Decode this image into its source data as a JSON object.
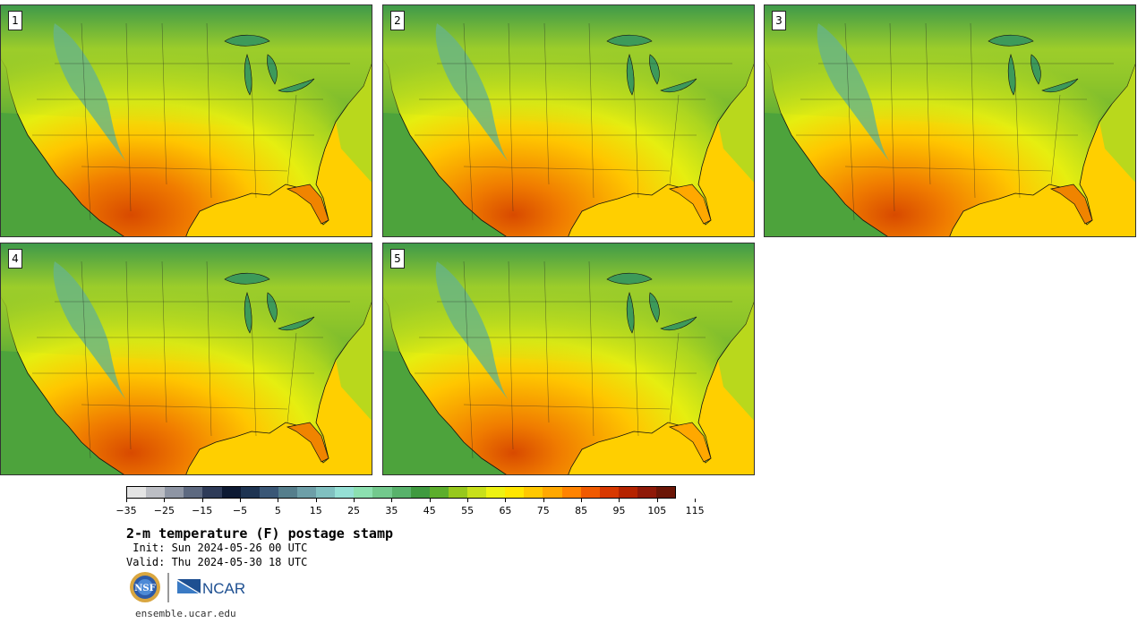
{
  "panels": [
    {
      "label": "1",
      "heat": 1.0
    },
    {
      "label": "2",
      "heat": 0.8
    },
    {
      "label": "3",
      "heat": 0.85
    },
    {
      "label": "4",
      "heat": 0.9
    },
    {
      "label": "5",
      "heat": 0.75
    }
  ],
  "colorbar": {
    "colors": [
      "#e4e4e4",
      "#bcbec4",
      "#8e95a4",
      "#5d6980",
      "#2e3b58",
      "#0d1a33",
      "#1e3452",
      "#3a5776",
      "#557e8c",
      "#6d9fa8",
      "#80c0c0",
      "#95e0d5",
      "#8ce0b0",
      "#73c98d",
      "#58b26b",
      "#3f9a3f",
      "#5cae2c",
      "#97c81c",
      "#c8e01a",
      "#eef212",
      "#ffe600",
      "#ffc800",
      "#ffa800",
      "#ff8300",
      "#f05a00",
      "#d83800",
      "#b52300",
      "#8f1908",
      "#6b1506"
    ],
    "ticks": [
      "−35",
      "−25",
      "−15",
      "−5",
      "5",
      "15",
      "25",
      "35",
      "45",
      "55",
      "65",
      "75",
      "85",
      "95",
      "105",
      "115"
    ],
    "min": -35,
    "max": 125
  },
  "title": "2-m temperature (F) postage stamp",
  "init": " Init: Sun 2024-05-26 00 UTC",
  "valid": "Valid: Thu 2024-05-30 18 UTC",
  "logos": {
    "left": "NSF",
    "right": "NCAR"
  },
  "url": "ensemble.ucar.edu"
}
